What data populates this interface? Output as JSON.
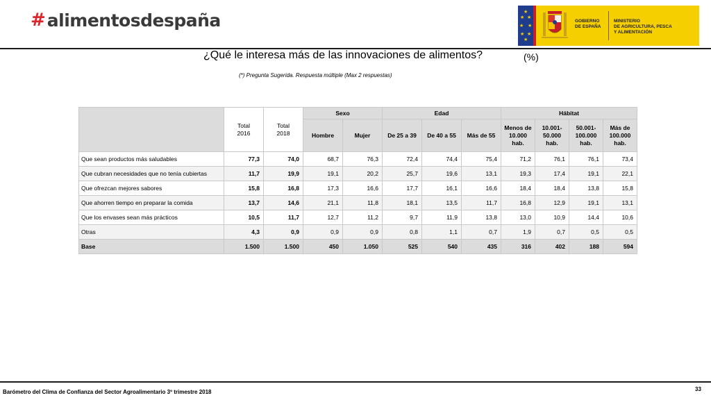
{
  "brand": {
    "hash": "#",
    "name": "alimentosdespaña"
  },
  "gov": {
    "line1": "GOBIERNO\nDE ESPAÑA",
    "line2": "MINISTERIO\nDE AGRICULTURA, PESCA\nY ALIMENTACIÓN",
    "flag_color": "#1f3d8c",
    "bg_color": "#f6cf00"
  },
  "title": "¿Qué le interesa más de las innovaciones de alimentos?",
  "unit": "(%)",
  "note": "(*) Pregunta Sugerida. Respuesta múltiple (Max 2 respuestas)",
  "table": {
    "col_total_2016": [
      "Total",
      "2016"
    ],
    "col_total_2018": [
      "Total",
      "2018"
    ],
    "groups": {
      "sexo": "Sexo",
      "edad": "Edad",
      "habitat": "Hábitat"
    },
    "sub": {
      "hombre": "Hombre",
      "mujer": "Mujer",
      "e1": "De 25 a 39",
      "e2": "De 40 a 55",
      "e3": "Más de 55",
      "h1": [
        "Menos de",
        "10.000",
        "hab."
      ],
      "h2": [
        "10.001-",
        "50.000",
        "hab."
      ],
      "h3": [
        "50.001-",
        "100.000",
        "hab."
      ],
      "h4": [
        "Más de",
        "100.000",
        "hab."
      ]
    },
    "rows": [
      {
        "label": "Que sean productos más saludables",
        "v": [
          "77,3",
          "74,0",
          "68,7",
          "76,3",
          "72,4",
          "74,4",
          "75,4",
          "71,2",
          "76,1",
          "76,1",
          "73,4"
        ]
      },
      {
        "label": "Que cubran necesidades que no tenía cubiertas",
        "v": [
          "11,7",
          "19,9",
          "19,1",
          "20,2",
          "25,7",
          "19,6",
          "13,1",
          "19,3",
          "17,4",
          "19,1",
          "22,1"
        ]
      },
      {
        "label": "Que ofrezcan mejores sabores",
        "v": [
          "15,8",
          "16,8",
          "17,3",
          "16,6",
          "17,7",
          "16,1",
          "16,6",
          "18,4",
          "18,4",
          "13,8",
          "15,8"
        ]
      },
      {
        "label": "Que ahorren tiempo en preparar la comida",
        "v": [
          "13,7",
          "14,6",
          "21,1",
          "11,8",
          "18,1",
          "13,5",
          "11,7",
          "16,8",
          "12,9",
          "19,1",
          "13,1"
        ]
      },
      {
        "label": "Que los envases sean más prácticos",
        "v": [
          "10,5",
          "11,7",
          "12,7",
          "11,2",
          "9,7",
          "11,9",
          "13,8",
          "13,0",
          "10,9",
          "14,4",
          "10,6"
        ]
      },
      {
        "label": "Otras",
        "v": [
          "4,3",
          "0,9",
          "0,9",
          "0,9",
          "0,8",
          "1,1",
          "0,7",
          "1,9",
          "0,7",
          "0,5",
          "0,5"
        ]
      },
      {
        "label": "Base",
        "v": [
          "1.500",
          "1.500",
          "450",
          "1.050",
          "525",
          "540",
          "435",
          "316",
          "402",
          "188",
          "594"
        ]
      }
    ]
  },
  "footer": {
    "text": "Barómetro del Clima de Confianza del Sector Agroalimentario 3º trimestre 2018",
    "page": "33"
  }
}
